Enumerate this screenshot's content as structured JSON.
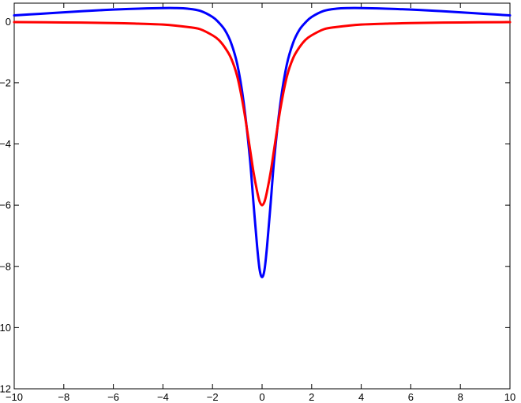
{
  "chart_data": {
    "type": "line",
    "title": "",
    "xlabel": "",
    "ylabel": "",
    "xlim": [
      -10,
      10
    ],
    "ylim": [
      -12,
      0.6
    ],
    "grid": false,
    "legend": "none",
    "x_ticks": [
      -10,
      -8,
      -6,
      -4,
      -2,
      0,
      2,
      4,
      6,
      8,
      10
    ],
    "x_tick_labels": [
      "−10",
      "−8",
      "−6",
      "−4",
      "−2",
      "0",
      "2",
      "4",
      "6",
      "8",
      "10"
    ],
    "y_ticks": [
      0,
      -2,
      -4,
      -6,
      -8,
      -10,
      -12
    ],
    "y_tick_labels": [
      "0",
      "−2",
      "−4",
      "−6",
      "−8",
      "−10",
      "−12"
    ],
    "series": [
      {
        "color": "#0000ff",
        "x": [
          -10,
          -9,
          -8,
          -7,
          -6,
          -5,
          -4,
          -3.5,
          -3,
          -2.5,
          -2,
          -1.75,
          -1.5,
          -1.25,
          -1,
          -0.75,
          -0.5,
          -0.35,
          -0.2,
          -0.1,
          0,
          0.1,
          0.2,
          0.35,
          0.5,
          0.75,
          1,
          1.25,
          1.5,
          1.75,
          2,
          2.5,
          3,
          3.5,
          4,
          5,
          6,
          7,
          8,
          9,
          10
        ],
        "y": [
          0.2,
          0.25,
          0.3,
          0.35,
          0.39,
          0.42,
          0.44,
          0.44,
          0.42,
          0.35,
          0.15,
          -0.03,
          -0.28,
          -0.7,
          -1.4,
          -2.6,
          -4.4,
          -5.9,
          -7.35,
          -8.1,
          -8.35,
          -8.1,
          -7.35,
          -5.9,
          -4.4,
          -2.6,
          -1.4,
          -0.7,
          -0.28,
          -0.03,
          0.15,
          0.35,
          0.42,
          0.44,
          0.44,
          0.42,
          0.39,
          0.35,
          0.3,
          0.25,
          0.2
        ]
      },
      {
        "color": "#ff0000",
        "x": [
          -10,
          -8,
          -6,
          -5,
          -4,
          -3,
          -2.5,
          -2,
          -1.75,
          -1.5,
          -1.25,
          -1,
          -0.75,
          -0.5,
          -0.35,
          -0.2,
          -0.1,
          0,
          0.1,
          0.2,
          0.35,
          0.5,
          0.75,
          1,
          1.25,
          1.5,
          1.75,
          2,
          2.5,
          3,
          4,
          5,
          6,
          8,
          10
        ],
        "y": [
          -0.02,
          -0.03,
          -0.05,
          -0.07,
          -0.1,
          -0.18,
          -0.25,
          -0.45,
          -0.6,
          -0.85,
          -1.2,
          -1.8,
          -2.8,
          -4.1,
          -4.9,
          -5.55,
          -5.88,
          -6.0,
          -5.88,
          -5.55,
          -4.9,
          -4.1,
          -2.8,
          -1.8,
          -1.2,
          -0.85,
          -0.6,
          -0.45,
          -0.25,
          -0.18,
          -0.1,
          -0.07,
          -0.05,
          -0.03,
          -0.02
        ]
      }
    ]
  }
}
